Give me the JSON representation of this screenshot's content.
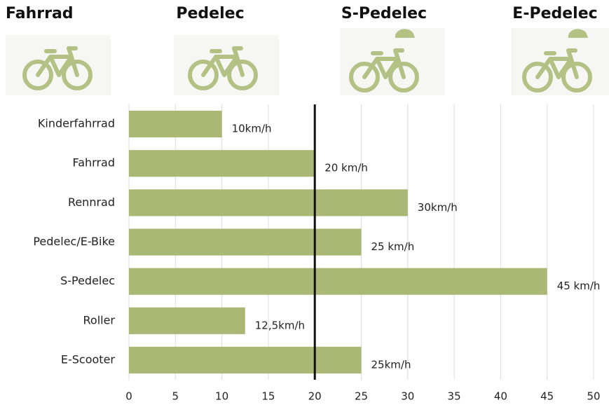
{
  "headers": [
    "Fahrrad",
    "Pedelec",
    "S-Pedelec",
    "E-Pedelec"
  ],
  "chart_data": {
    "type": "bar",
    "orientation": "horizontal",
    "categories": [
      "Kinderfahrrad",
      "Fahrrad",
      "Rennrad",
      "Pedelec/E-Bike",
      "S-Pedelec",
      "Roller",
      "E-Scooter"
    ],
    "values": [
      10,
      20,
      30,
      25,
      45,
      12.5,
      25
    ],
    "value_labels": [
      "10km/h",
      "20 km/h",
      "30km/h",
      "25 km/h",
      "45 km/h",
      "12,5km/h",
      "25km/h"
    ],
    "color": "#a9b874",
    "xlim": [
      0,
      50
    ],
    "xticks": [
      0,
      5,
      10,
      15,
      20,
      25,
      30,
      35,
      40,
      45,
      50
    ],
    "grid": true,
    "reference_line": 20
  }
}
